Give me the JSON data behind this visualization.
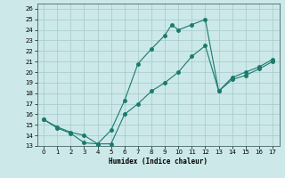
{
  "xlabel": "Humidex (Indice chaleur)",
  "xlim": [
    -0.5,
    17.5
  ],
  "ylim": [
    13,
    26.5
  ],
  "xticks": [
    0,
    1,
    2,
    3,
    4,
    5,
    6,
    7,
    8,
    9,
    10,
    11,
    12,
    13,
    14,
    15,
    16,
    17
  ],
  "yticks": [
    13,
    14,
    15,
    16,
    17,
    18,
    19,
    20,
    21,
    22,
    23,
    24,
    25,
    26
  ],
  "background_color": "#cce8e8",
  "line_color": "#1a7a6e",
  "grid_color": "#aacece",
  "line1_x": [
    0,
    1,
    2,
    3,
    4,
    5,
    6,
    7,
    8,
    9,
    10,
    11,
    12,
    13,
    14,
    15,
    16,
    17
  ],
  "line1_y": [
    15.5,
    14.7,
    14.2,
    13.3,
    13.2,
    13.2,
    16.0,
    17.0,
    18.2,
    19.0,
    20.0,
    21.5,
    22.5,
    18.2,
    19.3,
    19.7,
    20.3,
    21.0
  ],
  "line2_x": [
    0,
    1,
    2,
    3,
    4,
    5,
    6,
    7,
    8,
    9,
    9.5,
    10,
    11,
    12,
    13,
    14,
    15,
    16,
    17
  ],
  "line2_y": [
    15.5,
    14.8,
    14.3,
    14.0,
    13.2,
    14.5,
    17.3,
    20.8,
    22.2,
    23.5,
    24.5,
    24.0,
    24.5,
    25.0,
    18.2,
    19.5,
    20.0,
    20.5,
    21.2
  ],
  "marker_size": 2.5
}
